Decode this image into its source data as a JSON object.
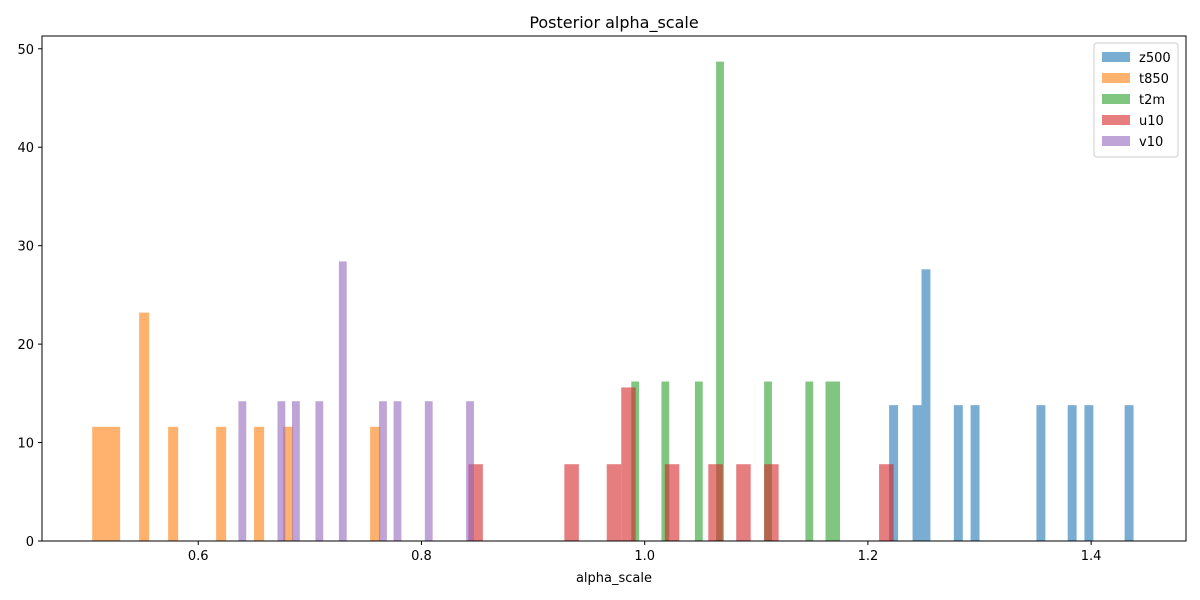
{
  "chart_data": {
    "type": "bar",
    "title": "Posterior alpha_scale",
    "xlabel": "alpha_scale",
    "ylabel": "",
    "xlim": [
      0.46,
      1.485
    ],
    "ylim": [
      0,
      51.3
    ],
    "xticks": [
      0.6,
      0.8,
      1.0,
      1.2,
      1.4
    ],
    "xtick_labels": [
      "0.6",
      "0.8",
      "1.0",
      "1.2",
      "1.4"
    ],
    "yticks": [
      0,
      10,
      20,
      30,
      40,
      50
    ],
    "ytick_labels": [
      "0",
      "10",
      "20",
      "30",
      "40",
      "50"
    ],
    "grid": false,
    "legend_position": "top-right",
    "series": [
      {
        "name": "z500",
        "color": "#1f77b4",
        "bins": [
          {
            "x0": 1.219,
            "x1": 1.227,
            "y": 13.8
          },
          {
            "x0": 1.24,
            "x1": 1.248,
            "y": 13.8
          },
          {
            "x0": 1.248,
            "x1": 1.256,
            "y": 27.6
          },
          {
            "x0": 1.277,
            "x1": 1.285,
            "y": 13.8
          },
          {
            "x0": 1.292,
            "x1": 1.3,
            "y": 13.8
          },
          {
            "x0": 1.351,
            "x1": 1.359,
            "y": 13.8
          },
          {
            "x0": 1.379,
            "x1": 1.387,
            "y": 13.8
          },
          {
            "x0": 1.394,
            "x1": 1.402,
            "y": 13.8
          },
          {
            "x0": 1.43,
            "x1": 1.438,
            "y": 13.8
          }
        ]
      },
      {
        "name": "t850",
        "color": "#ff7f0e",
        "bins": [
          {
            "x0": 0.505,
            "x1": 0.53,
            "y": 11.6
          },
          {
            "x0": 0.547,
            "x1": 0.556,
            "y": 23.2
          },
          {
            "x0": 0.573,
            "x1": 0.582,
            "y": 11.6
          },
          {
            "x0": 0.616,
            "x1": 0.625,
            "y": 11.6
          },
          {
            "x0": 0.65,
            "x1": 0.659,
            "y": 11.6
          },
          {
            "x0": 0.676,
            "x1": 0.685,
            "y": 11.6
          },
          {
            "x0": 0.754,
            "x1": 0.763,
            "y": 11.6
          }
        ]
      },
      {
        "name": "t2m",
        "color": "#2ca02c",
        "bins": [
          {
            "x0": 0.988,
            "x1": 0.995,
            "y": 16.2
          },
          {
            "x0": 1.015,
            "x1": 1.022,
            "y": 16.2
          },
          {
            "x0": 1.045,
            "x1": 1.052,
            "y": 16.2
          },
          {
            "x0": 1.064,
            "x1": 1.071,
            "y": 48.7
          },
          {
            "x0": 1.107,
            "x1": 1.114,
            "y": 16.2
          },
          {
            "x0": 1.144,
            "x1": 1.151,
            "y": 16.2
          },
          {
            "x0": 1.162,
            "x1": 1.175,
            "y": 16.2
          }
        ]
      },
      {
        "name": "u10",
        "color": "#d62728",
        "bins": [
          {
            "x0": 0.842,
            "x1": 0.855,
            "y": 7.8
          },
          {
            "x0": 0.928,
            "x1": 0.941,
            "y": 7.8
          },
          {
            "x0": 0.966,
            "x1": 0.979,
            "y": 7.8
          },
          {
            "x0": 0.979,
            "x1": 0.992,
            "y": 15.6
          },
          {
            "x0": 1.018,
            "x1": 1.031,
            "y": 7.8
          },
          {
            "x0": 1.057,
            "x1": 1.07,
            "y": 7.8
          },
          {
            "x0": 1.082,
            "x1": 1.095,
            "y": 7.8
          },
          {
            "x0": 1.107,
            "x1": 1.12,
            "y": 7.8
          },
          {
            "x0": 1.21,
            "x1": 1.223,
            "y": 7.8
          }
        ]
      },
      {
        "name": "v10",
        "color": "#9467bd",
        "bins": [
          {
            "x0": 0.636,
            "x1": 0.643,
            "y": 14.2
          },
          {
            "x0": 0.671,
            "x1": 0.678,
            "y": 14.2
          },
          {
            "x0": 0.684,
            "x1": 0.691,
            "y": 14.2
          },
          {
            "x0": 0.705,
            "x1": 0.712,
            "y": 14.2
          },
          {
            "x0": 0.726,
            "x1": 0.733,
            "y": 28.4
          },
          {
            "x0": 0.762,
            "x1": 0.769,
            "y": 14.2
          },
          {
            "x0": 0.775,
            "x1": 0.782,
            "y": 14.2
          },
          {
            "x0": 0.803,
            "x1": 0.81,
            "y": 14.2
          },
          {
            "x0": 0.84,
            "x1": 0.847,
            "y": 14.2
          }
        ]
      }
    ]
  }
}
